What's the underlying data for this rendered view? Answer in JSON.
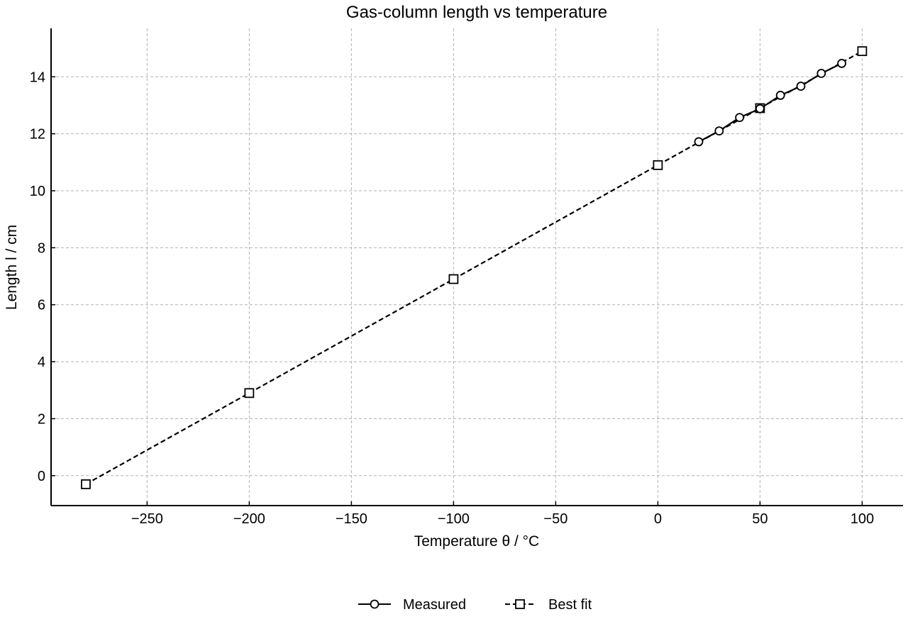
{
  "chart_data": {
    "type": "line",
    "title": "Gas-column length vs temperature",
    "xlabel": "Temperature θ / °C",
    "ylabel": "Length l / cm",
    "xlim": [
      -297,
      120
    ],
    "ylim": [
      -1.05,
      15.7
    ],
    "x_ticks": [
      -250,
      -200,
      -150,
      -100,
      -50,
      0,
      50,
      100
    ],
    "x_tick_labels": [
      "−250",
      "−200",
      "−150",
      "−100",
      "−50",
      "0",
      "50",
      "100"
    ],
    "y_ticks": [
      0,
      2,
      4,
      6,
      8,
      10,
      12,
      14
    ],
    "y_tick_labels": [
      "0",
      "2",
      "4",
      "6",
      "8",
      "10",
      "12",
      "14"
    ],
    "grid": true,
    "legend_position": "bottom-center",
    "series": [
      {
        "name": "Measured",
        "marker": "circle",
        "line_style": "solid",
        "color": "#000000",
        "x": [
          20,
          30,
          40,
          50,
          60,
          70,
          80,
          90
        ],
        "y": [
          11.72,
          12.1,
          12.57,
          12.88,
          13.35,
          13.67,
          14.12,
          14.47
        ]
      },
      {
        "name": "Best fit",
        "marker": "square",
        "line_style": "dashed",
        "color": "#000000",
        "x": [
          -280,
          -200,
          -100,
          0,
          50,
          100
        ],
        "y": [
          -0.3,
          2.9,
          6.9,
          10.9,
          12.9,
          14.9
        ]
      }
    ]
  }
}
